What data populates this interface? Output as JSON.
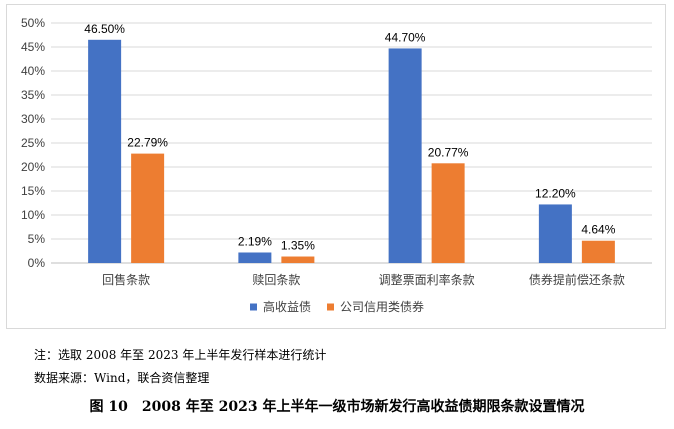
{
  "chart_data": {
    "type": "bar",
    "categories": [
      "回售条款",
      "赎回条款",
      "调整票面利率条款",
      "债券提前偿还条款"
    ],
    "series": [
      {
        "name": "高收益债",
        "values": [
          46.5,
          2.19,
          44.7,
          12.2
        ],
        "labels": [
          "46.50%",
          "2.19%",
          "44.70%",
          "12.20%"
        ],
        "color": "#4472c4"
      },
      {
        "name": "公司信用类债券",
        "values": [
          22.79,
          1.35,
          20.77,
          4.64
        ],
        "labels": [
          "22.79%",
          "1.35%",
          "20.77%",
          "4.64%"
        ],
        "color": "#ed7d31"
      }
    ],
    "ylim": [
      0,
      50
    ],
    "yticks": [
      "0%",
      "5%",
      "10%",
      "15%",
      "20%",
      "25%",
      "30%",
      "35%",
      "40%",
      "45%",
      "50%"
    ],
    "grid": true,
    "legend_position": "bottom"
  },
  "note": "注：选取 2008 年至 2023 年上半年发行样本进行统计",
  "source": "数据来源：Wind，联合资信整理",
  "caption": "图 10　2008 年至 2023 年上半年一级市场新发行高收益债期限条款设置情况"
}
